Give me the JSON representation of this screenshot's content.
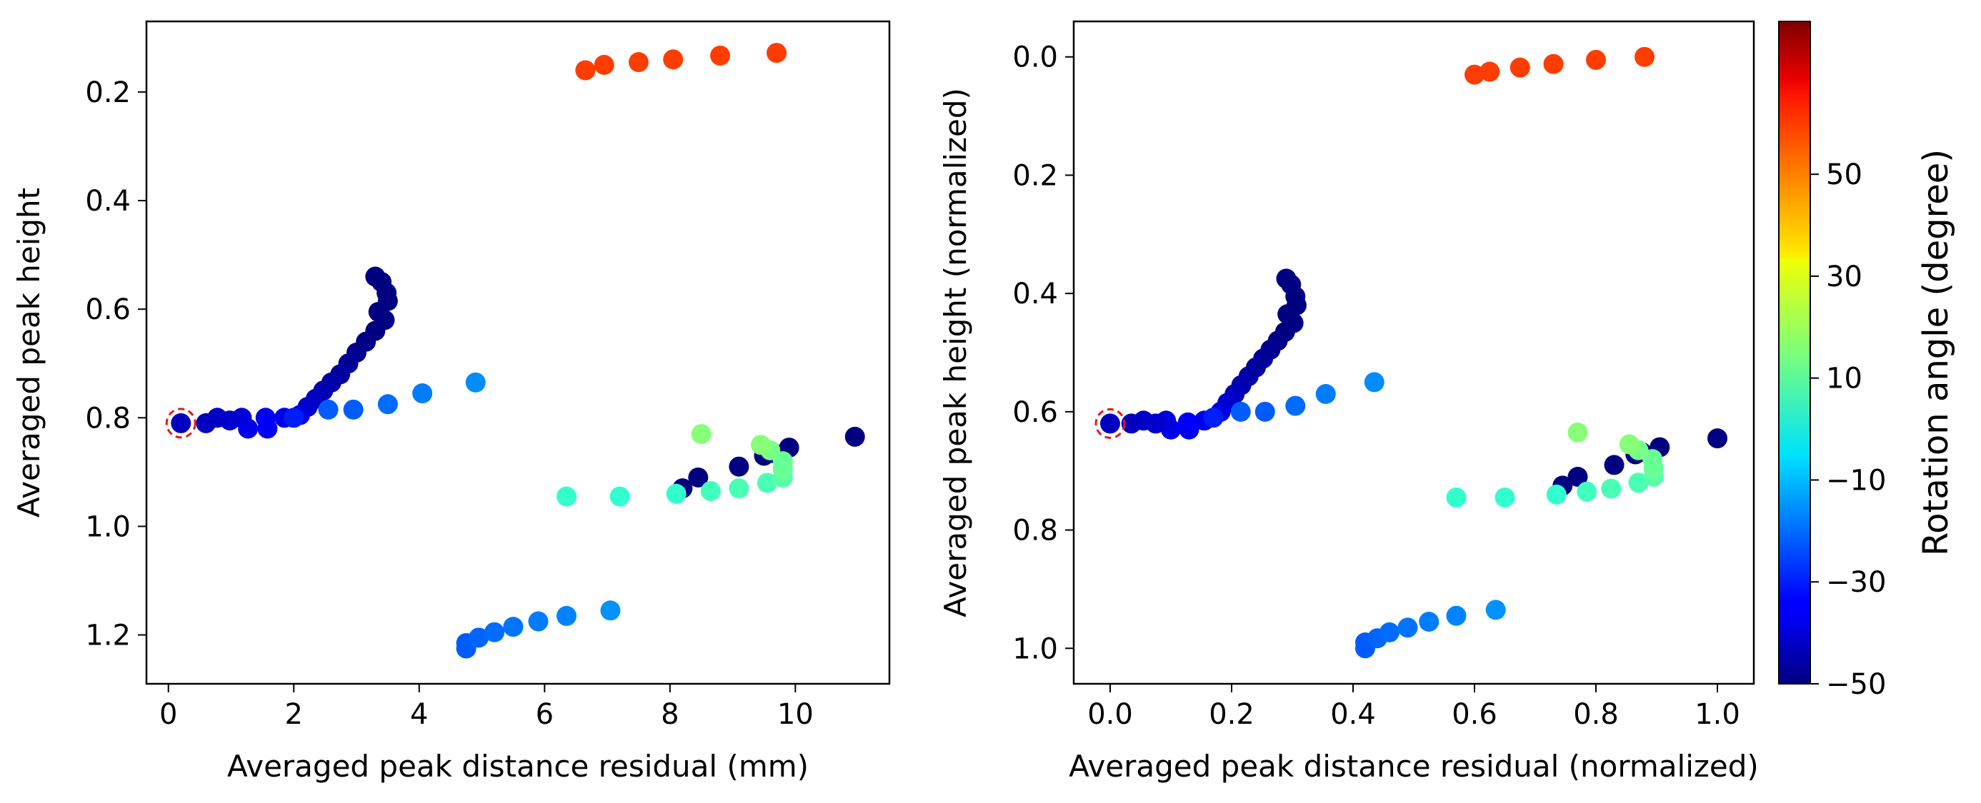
{
  "chart_data": [
    {
      "type": "scatter",
      "xlabel": "Averaged peak distance residual (mm)",
      "ylabel": "Averaged peak height",
      "xlim": [
        -0.35,
        11.5
      ],
      "ylim": [
        1.29,
        0.07
      ],
      "y_inverted": true,
      "xticks": [
        0,
        2,
        4,
        6,
        8,
        10
      ],
      "xtick_labels": [
        "0",
        "2",
        "4",
        "6",
        "8",
        "10"
      ],
      "yticks": [
        0.2,
        0.4,
        0.6,
        0.8,
        1.0,
        1.2
      ],
      "ytick_labels": [
        "0.2",
        "0.4",
        "0.6",
        "0.8",
        "1.0",
        "1.2"
      ],
      "highlight": {
        "x": 0.2,
        "y": 0.81,
        "color": "#e41a1c"
      },
      "points": [
        {
          "x": 6.65,
          "y": 0.16,
          "angle": 56
        },
        {
          "x": 6.95,
          "y": 0.15,
          "angle": 56
        },
        {
          "x": 7.5,
          "y": 0.145,
          "angle": 56
        },
        {
          "x": 8.05,
          "y": 0.14,
          "angle": 56
        },
        {
          "x": 8.8,
          "y": 0.133,
          "angle": 56
        },
        {
          "x": 9.7,
          "y": 0.128,
          "angle": 56
        },
        {
          "x": 3.3,
          "y": 0.54,
          "angle": -50
        },
        {
          "x": 3.4,
          "y": 0.55,
          "angle": -50
        },
        {
          "x": 3.48,
          "y": 0.57,
          "angle": -50
        },
        {
          "x": 3.5,
          "y": 0.585,
          "angle": -50
        },
        {
          "x": 3.35,
          "y": 0.605,
          "angle": -50
        },
        {
          "x": 3.45,
          "y": 0.62,
          "angle": -50
        },
        {
          "x": 3.3,
          "y": 0.64,
          "angle": -50
        },
        {
          "x": 3.15,
          "y": 0.66,
          "angle": -49
        },
        {
          "x": 3.0,
          "y": 0.68,
          "angle": -48
        },
        {
          "x": 2.87,
          "y": 0.7,
          "angle": -47
        },
        {
          "x": 2.74,
          "y": 0.72,
          "angle": -46
        },
        {
          "x": 2.6,
          "y": 0.735,
          "angle": -45
        },
        {
          "x": 2.47,
          "y": 0.75,
          "angle": -44
        },
        {
          "x": 2.35,
          "y": 0.765,
          "angle": -42
        },
        {
          "x": 2.22,
          "y": 0.78,
          "angle": -40
        },
        {
          "x": 2.1,
          "y": 0.795,
          "angle": -38
        },
        {
          "x": 1.85,
          "y": 0.8,
          "angle": -36
        },
        {
          "x": 1.58,
          "y": 0.82,
          "angle": -35
        },
        {
          "x": 1.55,
          "y": 0.8,
          "angle": -35
        },
        {
          "x": 1.27,
          "y": 0.82,
          "angle": -36
        },
        {
          "x": 1.17,
          "y": 0.8,
          "angle": -38
        },
        {
          "x": 0.98,
          "y": 0.805,
          "angle": -40
        },
        {
          "x": 0.78,
          "y": 0.8,
          "angle": -41
        },
        {
          "x": 0.6,
          "y": 0.81,
          "angle": -42
        },
        {
          "x": 0.2,
          "y": 0.81,
          "angle": -42
        },
        {
          "x": 2.0,
          "y": 0.8,
          "angle": -30
        },
        {
          "x": 2.55,
          "y": 0.785,
          "angle": -22
        },
        {
          "x": 2.95,
          "y": 0.785,
          "angle": -22
        },
        {
          "x": 3.5,
          "y": 0.775,
          "angle": -20
        },
        {
          "x": 4.05,
          "y": 0.755,
          "angle": -18
        },
        {
          "x": 4.9,
          "y": 0.735,
          "angle": -16
        },
        {
          "x": 8.2,
          "y": 0.93,
          "angle": -50
        },
        {
          "x": 8.45,
          "y": 0.91,
          "angle": -50
        },
        {
          "x": 9.1,
          "y": 0.89,
          "angle": -50
        },
        {
          "x": 9.5,
          "y": 0.87,
          "angle": -50
        },
        {
          "x": 9.65,
          "y": 0.865,
          "angle": -50
        },
        {
          "x": 9.9,
          "y": 0.855,
          "angle": -50
        },
        {
          "x": 10.95,
          "y": 0.835,
          "angle": -50
        },
        {
          "x": 6.35,
          "y": 0.945,
          "angle": 5
        },
        {
          "x": 7.2,
          "y": 0.945,
          "angle": 5
        },
        {
          "x": 8.1,
          "y": 0.94,
          "angle": 5
        },
        {
          "x": 8.65,
          "y": 0.935,
          "angle": 7
        },
        {
          "x": 9.1,
          "y": 0.93,
          "angle": 8
        },
        {
          "x": 9.55,
          "y": 0.92,
          "angle": 8
        },
        {
          "x": 9.8,
          "y": 0.91,
          "angle": 10
        },
        {
          "x": 9.8,
          "y": 0.895,
          "angle": 12
        },
        {
          "x": 9.8,
          "y": 0.88,
          "angle": 12
        },
        {
          "x": 9.6,
          "y": 0.86,
          "angle": 14
        },
        {
          "x": 9.45,
          "y": 0.85,
          "angle": 16
        },
        {
          "x": 8.5,
          "y": 0.83,
          "angle": 16
        },
        {
          "x": 4.75,
          "y": 1.225,
          "angle": -22
        },
        {
          "x": 4.75,
          "y": 1.215,
          "angle": -22
        },
        {
          "x": 4.95,
          "y": 1.205,
          "angle": -21
        },
        {
          "x": 5.2,
          "y": 1.195,
          "angle": -20
        },
        {
          "x": 5.5,
          "y": 1.185,
          "angle": -19
        },
        {
          "x": 5.9,
          "y": 1.175,
          "angle": -18
        },
        {
          "x": 6.35,
          "y": 1.165,
          "angle": -17
        },
        {
          "x": 7.05,
          "y": 1.155,
          "angle": -15
        }
      ]
    },
    {
      "type": "scatter",
      "xlabel": "Averaged peak distance residual (normalized)",
      "ylabel": "Averaged peak height (normalized)",
      "xlim": [
        -0.06,
        1.06
      ],
      "ylim": [
        1.06,
        -0.06
      ],
      "y_inverted": true,
      "xticks": [
        0.0,
        0.2,
        0.4,
        0.6,
        0.8,
        1.0
      ],
      "xtick_labels": [
        "0.0",
        "0.2",
        "0.4",
        "0.6",
        "0.8",
        "1.0"
      ],
      "yticks": [
        0.0,
        0.2,
        0.4,
        0.6,
        0.8,
        1.0
      ],
      "ytick_labels": [
        "0.0",
        "0.2",
        "0.4",
        "0.6",
        "0.8",
        "1.0"
      ],
      "highlight": {
        "x": 0.0,
        "y": 0.62,
        "color": "#e41a1c"
      },
      "points": [
        {
          "x": 0.6,
          "y": 0.03,
          "angle": 56
        },
        {
          "x": 0.625,
          "y": 0.025,
          "angle": 56
        },
        {
          "x": 0.675,
          "y": 0.018,
          "angle": 56
        },
        {
          "x": 0.73,
          "y": 0.012,
          "angle": 56
        },
        {
          "x": 0.8,
          "y": 0.005,
          "angle": 56
        },
        {
          "x": 0.88,
          "y": 0.0,
          "angle": 56
        },
        {
          "x": 0.29,
          "y": 0.375,
          "angle": -50
        },
        {
          "x": 0.298,
          "y": 0.385,
          "angle": -50
        },
        {
          "x": 0.305,
          "y": 0.405,
          "angle": -50
        },
        {
          "x": 0.307,
          "y": 0.42,
          "angle": -50
        },
        {
          "x": 0.292,
          "y": 0.435,
          "angle": -50
        },
        {
          "x": 0.302,
          "y": 0.45,
          "angle": -50
        },
        {
          "x": 0.288,
          "y": 0.465,
          "angle": -50
        },
        {
          "x": 0.276,
          "y": 0.48,
          "angle": -49
        },
        {
          "x": 0.264,
          "y": 0.495,
          "angle": -48
        },
        {
          "x": 0.252,
          "y": 0.51,
          "angle": -47
        },
        {
          "x": 0.24,
          "y": 0.525,
          "angle": -46
        },
        {
          "x": 0.228,
          "y": 0.54,
          "angle": -45
        },
        {
          "x": 0.216,
          "y": 0.555,
          "angle": -44
        },
        {
          "x": 0.205,
          "y": 0.57,
          "angle": -42
        },
        {
          "x": 0.193,
          "y": 0.585,
          "angle": -40
        },
        {
          "x": 0.182,
          "y": 0.6,
          "angle": -38
        },
        {
          "x": 0.155,
          "y": 0.615,
          "angle": -36
        },
        {
          "x": 0.13,
          "y": 0.63,
          "angle": -35
        },
        {
          "x": 0.128,
          "y": 0.618,
          "angle": -35
        },
        {
          "x": 0.1,
          "y": 0.63,
          "angle": -36
        },
        {
          "x": 0.092,
          "y": 0.615,
          "angle": -38
        },
        {
          "x": 0.075,
          "y": 0.62,
          "angle": -40
        },
        {
          "x": 0.055,
          "y": 0.615,
          "angle": -41
        },
        {
          "x": 0.035,
          "y": 0.62,
          "angle": -42
        },
        {
          "x": 0.0,
          "y": 0.62,
          "angle": -42
        },
        {
          "x": 0.17,
          "y": 0.61,
          "angle": -30
        },
        {
          "x": 0.215,
          "y": 0.6,
          "angle": -22
        },
        {
          "x": 0.255,
          "y": 0.6,
          "angle": -22
        },
        {
          "x": 0.305,
          "y": 0.59,
          "angle": -20
        },
        {
          "x": 0.355,
          "y": 0.57,
          "angle": -18
        },
        {
          "x": 0.435,
          "y": 0.55,
          "angle": -16
        },
        {
          "x": 0.745,
          "y": 0.725,
          "angle": -50
        },
        {
          "x": 0.77,
          "y": 0.71,
          "angle": -50
        },
        {
          "x": 0.83,
          "y": 0.69,
          "angle": -50
        },
        {
          "x": 0.865,
          "y": 0.672,
          "angle": -50
        },
        {
          "x": 0.875,
          "y": 0.668,
          "angle": -50
        },
        {
          "x": 0.905,
          "y": 0.66,
          "angle": -50
        },
        {
          "x": 1.0,
          "y": 0.645,
          "angle": -50
        },
        {
          "x": 0.57,
          "y": 0.745,
          "angle": 5
        },
        {
          "x": 0.65,
          "y": 0.745,
          "angle": 5
        },
        {
          "x": 0.735,
          "y": 0.74,
          "angle": 5
        },
        {
          "x": 0.785,
          "y": 0.735,
          "angle": 7
        },
        {
          "x": 0.825,
          "y": 0.73,
          "angle": 8
        },
        {
          "x": 0.87,
          "y": 0.72,
          "angle": 8
        },
        {
          "x": 0.895,
          "y": 0.71,
          "angle": 10
        },
        {
          "x": 0.895,
          "y": 0.695,
          "angle": 12
        },
        {
          "x": 0.893,
          "y": 0.68,
          "angle": 12
        },
        {
          "x": 0.87,
          "y": 0.665,
          "angle": 14
        },
        {
          "x": 0.855,
          "y": 0.655,
          "angle": 16
        },
        {
          "x": 0.77,
          "y": 0.635,
          "angle": 16
        },
        {
          "x": 0.42,
          "y": 1.0,
          "angle": -22
        },
        {
          "x": 0.42,
          "y": 0.99,
          "angle": -22
        },
        {
          "x": 0.44,
          "y": 0.983,
          "angle": -21
        },
        {
          "x": 0.46,
          "y": 0.973,
          "angle": -20
        },
        {
          "x": 0.49,
          "y": 0.965,
          "angle": -19
        },
        {
          "x": 0.525,
          "y": 0.955,
          "angle": -18
        },
        {
          "x": 0.57,
          "y": 0.945,
          "angle": -17
        },
        {
          "x": 0.635,
          "y": 0.935,
          "angle": -15
        }
      ]
    }
  ],
  "colorbar": {
    "label": "Rotation angle (degree)",
    "colormap": "jet",
    "min": -50,
    "max": 80,
    "ticks": [
      -50,
      -30,
      -10,
      10,
      30,
      50
    ],
    "tick_labels": [
      "−50",
      "−30",
      "−10",
      "10",
      "30",
      "50"
    ]
  }
}
